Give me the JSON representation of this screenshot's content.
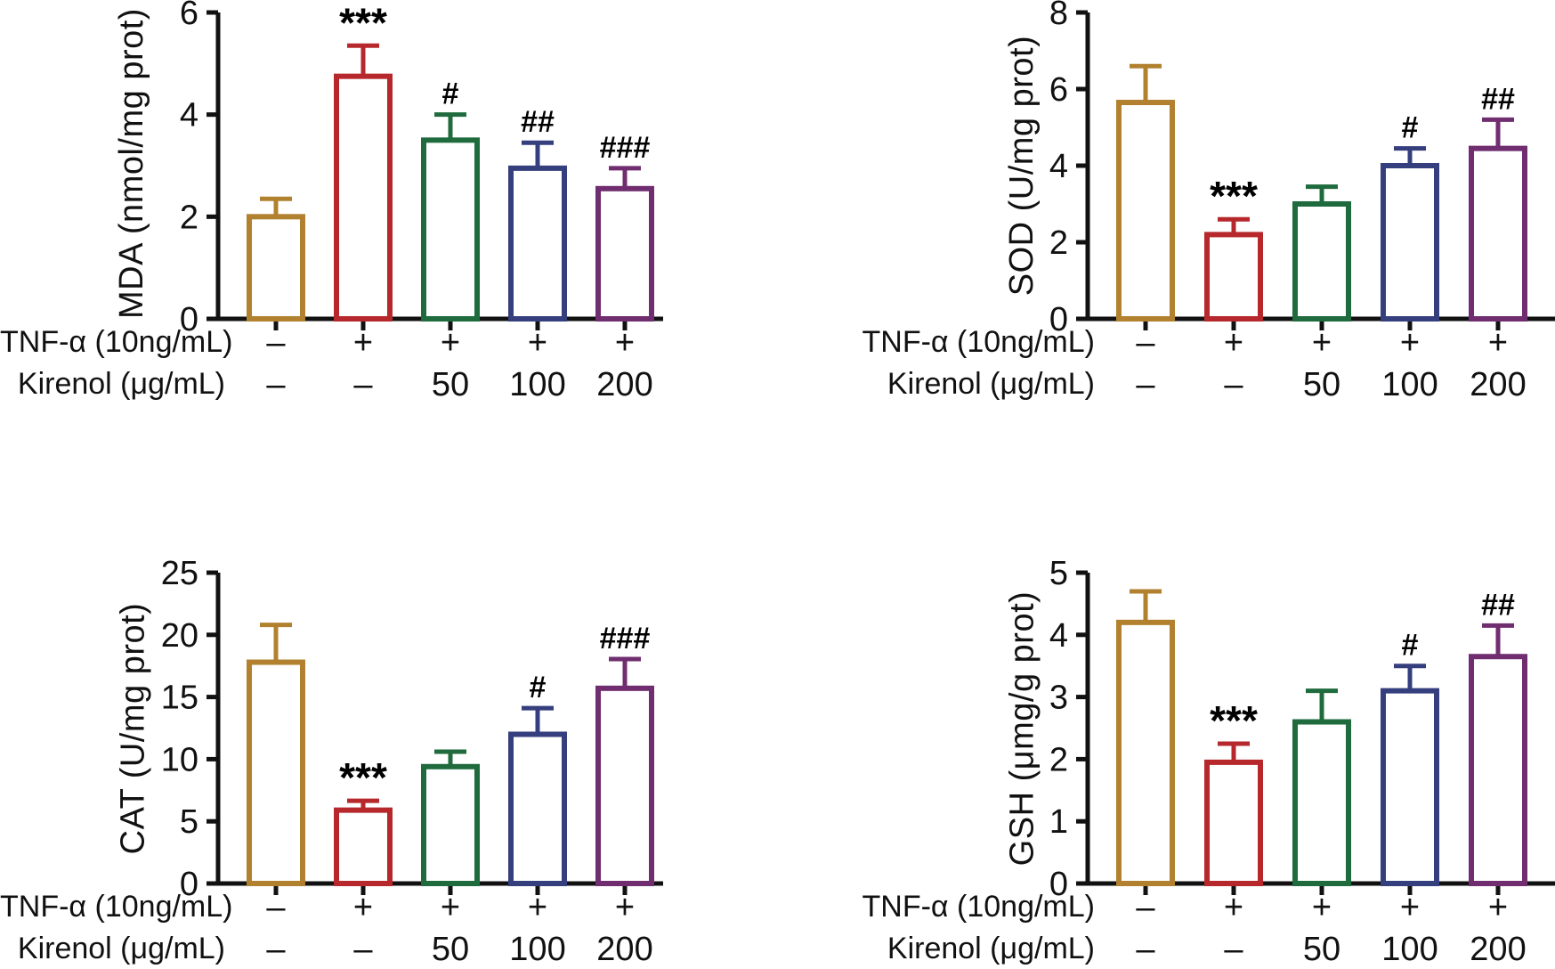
{
  "figure": {
    "background": "#ffffff",
    "axis_color": "#111111",
    "text_color": "#111111",
    "significance_color": "#000000",
    "series_colors": [
      "#B1812F",
      "#B6282B",
      "#1F6B3E",
      "#353F7E",
      "#702D6F"
    ]
  },
  "chart_data": [
    {
      "type": "bar",
      "title": "",
      "xlabel": "",
      "ylabel": "MDA (nmol/mg prot)",
      "ylim": [
        0,
        6
      ],
      "yticks": [
        0,
        2,
        4,
        6
      ],
      "grid": false,
      "legend": "none",
      "categories": [
        "TNF-α −, Kirenol −",
        "TNF-α +, Kirenol −",
        "TNF-α +, Kirenol 50",
        "TNF-α +, Kirenol 100",
        "TNF-α +, Kirenol 200"
      ],
      "values": [
        2.0,
        4.75,
        3.5,
        2.95,
        2.55
      ],
      "errors_upper": [
        0.35,
        0.6,
        0.5,
        0.5,
        0.4
      ],
      "sig_markers": [
        "",
        "***",
        "#",
        "##",
        "###"
      ],
      "x_annotation_rows": [
        {
          "label": "TNF-α (10ng/mL)",
          "values": [
            "–",
            "+",
            "+",
            "+",
            "+"
          ]
        },
        {
          "label": "Kirenol (μg/mL)",
          "values": [
            "–",
            "–",
            "50",
            "100",
            "200"
          ]
        }
      ]
    },
    {
      "type": "bar",
      "title": "",
      "xlabel": "",
      "ylabel": "SOD (U/mg prot)",
      "ylim": [
        0,
        8
      ],
      "yticks": [
        0,
        2,
        4,
        6,
        8
      ],
      "grid": false,
      "legend": "none",
      "categories": [
        "TNF-α −, Kirenol −",
        "TNF-α +, Kirenol −",
        "TNF-α +, Kirenol 50",
        "TNF-α +, Kirenol 100",
        "TNF-α +, Kirenol 200"
      ],
      "values": [
        5.65,
        2.2,
        3.0,
        4.0,
        4.45
      ],
      "errors_upper": [
        0.95,
        0.4,
        0.45,
        0.45,
        0.75
      ],
      "sig_markers": [
        "",
        "***",
        "",
        "#",
        "##"
      ],
      "x_annotation_rows": [
        {
          "label": "TNF-α (10ng/mL)",
          "values": [
            "–",
            "+",
            "+",
            "+",
            "+"
          ]
        },
        {
          "label": "Kirenol (μg/mL)",
          "values": [
            "–",
            "–",
            "50",
            "100",
            "200"
          ]
        }
      ]
    },
    {
      "type": "bar",
      "title": "",
      "xlabel": "",
      "ylabel": "CAT (U/mg prot)",
      "ylim": [
        0,
        25
      ],
      "yticks": [
        0,
        5,
        10,
        15,
        20,
        25
      ],
      "grid": false,
      "legend": "none",
      "categories": [
        "TNF-α −, Kirenol −",
        "TNF-α +, Kirenol −",
        "TNF-α +, Kirenol 50",
        "TNF-α +, Kirenol 100",
        "TNF-α +, Kirenol 200"
      ],
      "values": [
        17.8,
        5.9,
        9.4,
        12.0,
        15.7
      ],
      "errors_upper": [
        3.0,
        0.75,
        1.2,
        2.1,
        2.35
      ],
      "sig_markers": [
        "",
        "***",
        "",
        "#",
        "###"
      ],
      "x_annotation_rows": [
        {
          "label": "TNF-α (10ng/mL)",
          "values": [
            "–",
            "+",
            "+",
            "+",
            "+"
          ]
        },
        {
          "label": "Kirenol (μg/mL)",
          "values": [
            "–",
            "–",
            "50",
            "100",
            "200"
          ]
        }
      ]
    },
    {
      "type": "bar",
      "title": "",
      "xlabel": "",
      "ylabel": "GSH (μmg/g prot)",
      "ylim": [
        0,
        5
      ],
      "yticks": [
        0,
        1,
        2,
        3,
        4,
        5
      ],
      "grid": false,
      "legend": "none",
      "categories": [
        "TNF-α −, Kirenol −",
        "TNF-α +, Kirenol −",
        "TNF-α +, Kirenol 50",
        "TNF-α +, Kirenol 100",
        "TNF-α +, Kirenol 200"
      ],
      "values": [
        4.2,
        1.95,
        2.6,
        3.1,
        3.65
      ],
      "errors_upper": [
        0.5,
        0.3,
        0.5,
        0.4,
        0.5
      ],
      "sig_markers": [
        "",
        "***",
        "",
        "#",
        "##"
      ],
      "x_annotation_rows": [
        {
          "label": "TNF-α (10ng/mL)",
          "values": [
            "–",
            "+",
            "+",
            "+",
            "+"
          ]
        },
        {
          "label": "Kirenol (μg/mL)",
          "values": [
            "–",
            "–",
            "50",
            "100",
            "200"
          ]
        }
      ]
    }
  ]
}
